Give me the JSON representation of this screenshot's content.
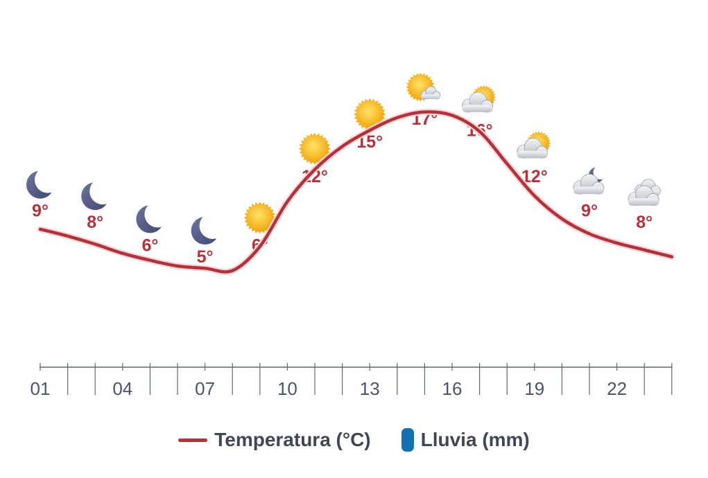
{
  "colors": {
    "temperature_line": "#b5313a",
    "rain": "#1470b0",
    "axis": "#5a6b6e",
    "moon": "#4f587e",
    "sun": "#f4b51a",
    "cloud": "#d3d7de"
  },
  "chart_data": {
    "type": "line",
    "title": "",
    "xlabel": "",
    "ylabel": "",
    "x": [
      "01",
      "02",
      "03",
      "04",
      "05",
      "06",
      "07",
      "08",
      "09",
      "10",
      "11",
      "12",
      "13",
      "14",
      "15",
      "16",
      "17",
      "18",
      "19",
      "20",
      "21",
      "22",
      "23",
      "24"
    ],
    "x_tick_labels": [
      "01",
      "04",
      "07",
      "10",
      "13",
      "16",
      "19",
      "22"
    ],
    "series": [
      {
        "name": "Temperatura (°C)",
        "x": [
          1,
          3,
          5,
          7,
          9,
          11,
          13,
          15,
          17,
          19,
          21,
          23
        ],
        "values": [
          9,
          8,
          6,
          5,
          6,
          12,
          15,
          17,
          16,
          12,
          9,
          8
        ],
        "labels": [
          "9°",
          "8°",
          "6°",
          "5°",
          "6°",
          "12°",
          "15°",
          "17°",
          "16°",
          "12°",
          "9°",
          "8°"
        ],
        "icons": [
          "moon-icon",
          "moon-icon",
          "moon-icon",
          "moon-icon",
          "sun-icon",
          "sun-icon",
          "sun-icon",
          "sun-behind-cloud-icon",
          "cloud-sun-icon",
          "cloud-sun-icon",
          "cloud-moon-icon",
          "cloud-icon"
        ]
      }
    ],
    "curve_points": [
      [
        1,
        8.2
      ],
      [
        2,
        7.6
      ],
      [
        3,
        6.9
      ],
      [
        4,
        6.1
      ],
      [
        5,
        5.5
      ],
      [
        6,
        5.0
      ],
      [
        7,
        4.8
      ],
      [
        8,
        4.6
      ],
      [
        9,
        6.7
      ],
      [
        10,
        10.6
      ],
      [
        11,
        13.4
      ],
      [
        12,
        15.4
      ],
      [
        13,
        16.8
      ],
      [
        14,
        17.9
      ],
      [
        15,
        18.4
      ],
      [
        16,
        18.1
      ],
      [
        17,
        16.7
      ],
      [
        18,
        13.9
      ],
      [
        19,
        11.1
      ],
      [
        20,
        9.1
      ],
      [
        21,
        7.8
      ],
      [
        22,
        7.0
      ],
      [
        23,
        6.4
      ],
      [
        24,
        5.8
      ]
    ],
    "ylim": [
      0,
      20
    ],
    "xlim": [
      1,
      24
    ],
    "grid": false,
    "legend": {
      "placement": "bottom-center",
      "entries": [
        {
          "label": "Temperatura (°C)",
          "marker": "line"
        },
        {
          "label": "Lluvia (mm)",
          "marker": "bar"
        }
      ]
    }
  }
}
